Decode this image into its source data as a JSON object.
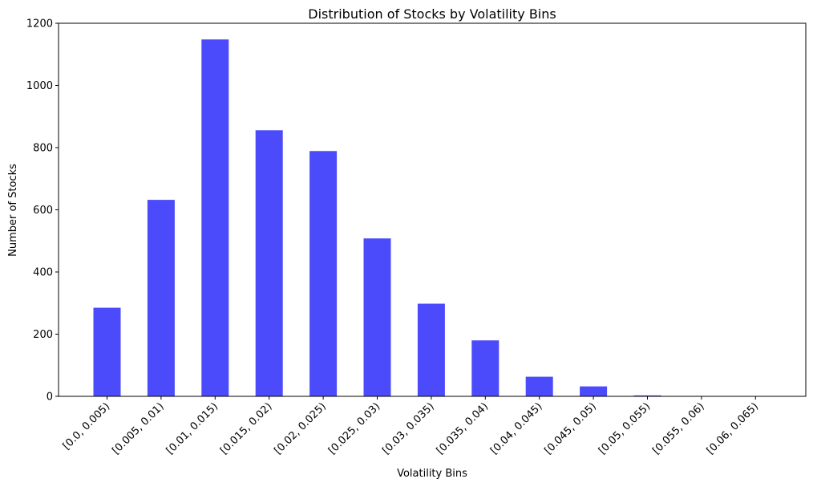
{
  "chart_data": {
    "type": "bar",
    "title": "Distribution of Stocks by Volatility Bins",
    "xlabel": "Volatility Bins",
    "ylabel": "Number of Stocks",
    "categories": [
      "[0.0, 0.005)",
      "[0.005, 0.01)",
      "[0.01, 0.015)",
      "[0.015, 0.02)",
      "[0.02, 0.025)",
      "[0.025, 0.03)",
      "[0.03, 0.035)",
      "[0.035, 0.04)",
      "[0.04, 0.045)",
      "[0.045, 0.05)",
      "[0.05, 0.055)",
      "[0.055, 0.06)",
      "[0.06, 0.065)"
    ],
    "values": [
      285,
      632,
      1148,
      856,
      789,
      508,
      298,
      180,
      63,
      32,
      3,
      0,
      0
    ],
    "ylim": [
      0,
      1200
    ],
    "yticks": [
      0,
      200,
      400,
      600,
      800,
      1000,
      1200
    ],
    "bar_color": "#4b4bfc",
    "grid": false
  }
}
